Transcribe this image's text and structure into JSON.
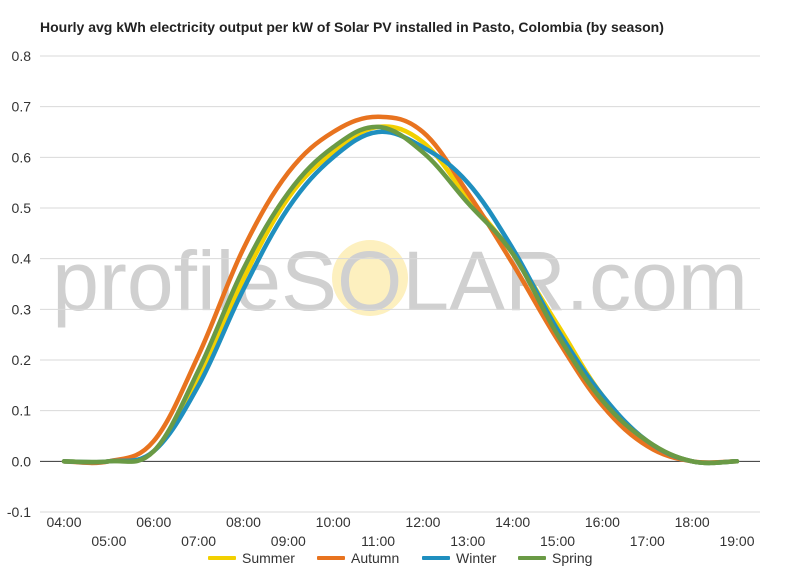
{
  "chart_data": {
    "type": "line",
    "title": "Hourly avg kWh electricity output per kW of Solar PV installed in Pasto, Colombia (by season)",
    "xlabel": "",
    "ylabel": "",
    "ylim": [
      -0.1,
      0.8
    ],
    "yticks": [
      "-0.1",
      "0.0",
      "0.1",
      "0.2",
      "0.3",
      "0.4",
      "0.5",
      "0.6",
      "0.7",
      "0.8"
    ],
    "grid": true,
    "legend_position": "bottom",
    "x": [
      "04:00",
      "05:00",
      "06:00",
      "07:00",
      "08:00",
      "09:00",
      "10:00",
      "11:00",
      "12:00",
      "13:00",
      "14:00",
      "15:00",
      "16:00",
      "17:00",
      "18:00",
      "19:00"
    ],
    "series": [
      {
        "name": "Summer",
        "color": "#f2d000",
        "values": [
          0.0,
          0.0,
          0.02,
          0.16,
          0.36,
          0.52,
          0.61,
          0.66,
          0.63,
          0.52,
          0.41,
          0.27,
          0.13,
          0.04,
          0.0,
          0.0
        ]
      },
      {
        "name": "Autumn",
        "color": "#e8731f",
        "values": [
          0.0,
          0.0,
          0.04,
          0.21,
          0.42,
          0.57,
          0.65,
          0.68,
          0.65,
          0.53,
          0.39,
          0.24,
          0.11,
          0.03,
          0.0,
          0.0
        ]
      },
      {
        "name": "Winter",
        "color": "#1f8fbf",
        "values": [
          0.0,
          0.0,
          0.02,
          0.15,
          0.34,
          0.5,
          0.6,
          0.65,
          0.62,
          0.55,
          0.42,
          0.26,
          0.13,
          0.04,
          0.0,
          0.0
        ]
      },
      {
        "name": "Spring",
        "color": "#6a9a45",
        "values": [
          0.0,
          0.0,
          0.02,
          0.18,
          0.38,
          0.53,
          0.62,
          0.66,
          0.61,
          0.51,
          0.41,
          0.25,
          0.12,
          0.04,
          0.0,
          0.0
        ]
      }
    ]
  },
  "watermark": {
    "text": "profileSOLAR.com",
    "sun_color": "#fdf0bf"
  }
}
